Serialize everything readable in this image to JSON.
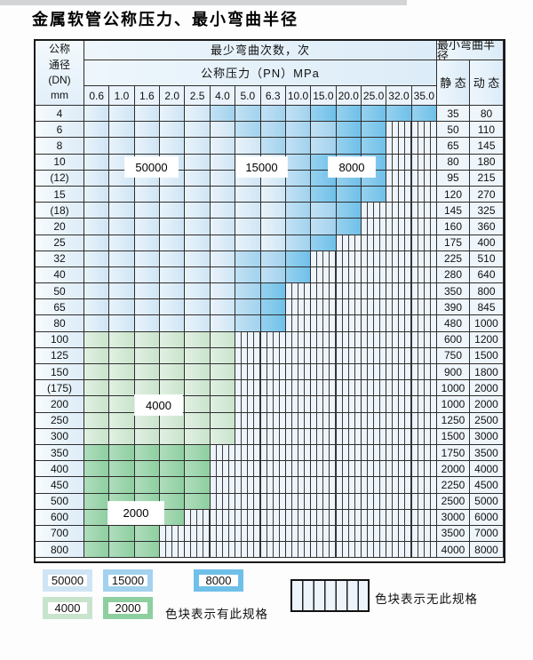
{
  "title": "金属软管公称压力、最小弯曲半径",
  "table": {
    "corner_header": [
      "公称",
      "通径",
      "(DN)",
      "mm"
    ],
    "cycles_header": "最少弯曲次数，次",
    "pressure_header": "公称压力（PN）MPa",
    "radius_header": "最小弯曲半径",
    "static_header": "静 态",
    "dynamic_header": "动 态",
    "pressures": [
      "0.6",
      "1.0",
      "1.6",
      "2.0",
      "2.5",
      "4.0",
      "5.0",
      "6.3",
      "10.0",
      "15.0",
      "20.0",
      "25.0",
      "32.0",
      "35.0"
    ],
    "cell_legend_codes": {
      "A": "50000",
      "B": "15000",
      "C": "8000",
      "D": "4000",
      "E": "2000",
      "X": "无此规格"
    },
    "rows": [
      {
        "dn": "4",
        "cells": "AAAAABBBBCCCCC",
        "static": "35",
        "dynamic": "80"
      },
      {
        "dn": "6",
        "cells": "AAAAAABBBBCCXX",
        "static": "50",
        "dynamic": "110"
      },
      {
        "dn": "8",
        "cells": "AAAAAAABBBCCXX",
        "static": "65",
        "dynamic": "145"
      },
      {
        "dn": "10",
        "cells": "AAAAAAAABCCCXX",
        "static": "80",
        "dynamic": "180"
      },
      {
        "dn": "(12)",
        "cells": "AAAAAAAABCCCXX",
        "static": "95",
        "dynamic": "215"
      },
      {
        "dn": "15",
        "cells": "AAAAAAAABCCCXX",
        "static": "120",
        "dynamic": "270"
      },
      {
        "dn": "(18)",
        "cells": "AAAAAAAABBCXXX",
        "static": "145",
        "dynamic": "325"
      },
      {
        "dn": "20",
        "cells": "AAAAAAAABBCXXX",
        "static": "160",
        "dynamic": "360"
      },
      {
        "dn": "25",
        "cells": "AAAAAAAABCXXXX",
        "static": "175",
        "dynamic": "400"
      },
      {
        "dn": "32",
        "cells": "AAAAAABBCXXXXX",
        "static": "225",
        "dynamic": "510"
      },
      {
        "dn": "40",
        "cells": "AAAAAABBCXXXXX",
        "static": "280",
        "dynamic": "640"
      },
      {
        "dn": "50",
        "cells": "AAAAAABCXXXXXX",
        "static": "350",
        "dynamic": "800"
      },
      {
        "dn": "65",
        "cells": "AAAAAABCXXXXXX",
        "static": "390",
        "dynamic": "845"
      },
      {
        "dn": "80",
        "cells": "AAAAAABCXXXXXX",
        "static": "480",
        "dynamic": "1000"
      },
      {
        "dn": "100",
        "cells": "DDDDDDXXXXXXXX",
        "static": "600",
        "dynamic": "1200"
      },
      {
        "dn": "125",
        "cells": "DDDDDDXXXXXXXX",
        "static": "750",
        "dynamic": "1500"
      },
      {
        "dn": "150",
        "cells": "DDDDDDXXXXXXXX",
        "static": "900",
        "dynamic": "1800"
      },
      {
        "dn": "(175)",
        "cells": "DDDDDDXXXXXXXX",
        "static": "1000",
        "dynamic": "2000"
      },
      {
        "dn": "200",
        "cells": "DDDDDDXXXXXXXX",
        "static": "1000",
        "dynamic": "2000"
      },
      {
        "dn": "250",
        "cells": "DDDDDDXXXXXXXX",
        "static": "1250",
        "dynamic": "2500"
      },
      {
        "dn": "300",
        "cells": "DDDDDDXXXXXXXX",
        "static": "1500",
        "dynamic": "3000"
      },
      {
        "dn": "350",
        "cells": "EEEEEXXXXXXXXX",
        "static": "1750",
        "dynamic": "3500"
      },
      {
        "dn": "400",
        "cells": "EEEEEXXXXXXXXX",
        "static": "2000",
        "dynamic": "4000"
      },
      {
        "dn": "450",
        "cells": "EEEEEXXXXXXXXX",
        "static": "2250",
        "dynamic": "4500"
      },
      {
        "dn": "500",
        "cells": "EEEEEXXXXXXXXX",
        "static": "2500",
        "dynamic": "5000"
      },
      {
        "dn": "600",
        "cells": "EEEEXXXXXXXXXX",
        "static": "3000",
        "dynamic": "6000"
      },
      {
        "dn": "700",
        "cells": "EEEXXXXXXXXXXX",
        "static": "3500",
        "dynamic": "7000"
      },
      {
        "dn": "800",
        "cells": "EEEXXXXXXXXXXX",
        "static": "4000",
        "dynamic": "8000"
      }
    ]
  },
  "overlays": [
    {
      "text": "50000"
    },
    {
      "text": "15000"
    },
    {
      "text": "8000"
    },
    {
      "text": "4000"
    },
    {
      "text": "2000"
    }
  ],
  "legend": {
    "items": [
      {
        "label": "50000"
      },
      {
        "label": "15000"
      },
      {
        "label": "8000"
      },
      {
        "label": "4000"
      },
      {
        "label": "2000"
      }
    ],
    "has_spec_text": "色块表示有此规格",
    "no_spec_text": "色块表示无此规格"
  },
  "colors": {
    "blue_50000": "#cfe5f5",
    "blue_15000": "#a2d2ee",
    "blue_8000": "#6fc0e9",
    "green_4000": "#c9e4cc",
    "green_2000": "#8ecfa0",
    "hatch_bg": "#edf4fb",
    "hatch_line": "#3c3c3c"
  }
}
